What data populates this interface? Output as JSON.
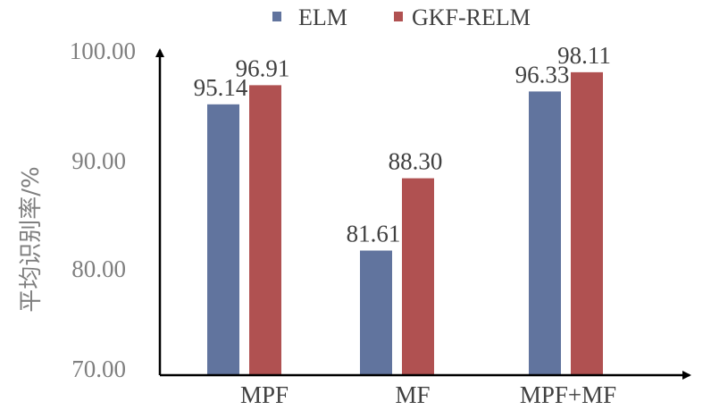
{
  "chart_data": {
    "type": "bar",
    "categories": [
      "MPF",
      "MF",
      "MPF+MF"
    ],
    "series": [
      {
        "name": "ELM",
        "values": [
          95.14,
          81.61,
          96.33
        ],
        "labels": [
          "95.14",
          "81.61",
          "96.33"
        ],
        "color": "#61749e"
      },
      {
        "name": "GKF-RELM",
        "values": [
          96.91,
          88.3,
          98.11
        ],
        "labels": [
          "96.91",
          "88.30",
          "98.11"
        ],
        "color": "#b05151"
      }
    ],
    "ylabel": "平均识别率/%",
    "ylim": [
      70,
      100
    ],
    "yticks": [
      "70.00",
      "80.00",
      "90.00",
      "100.00"
    ],
    "grid": false,
    "legend_position": "top"
  }
}
